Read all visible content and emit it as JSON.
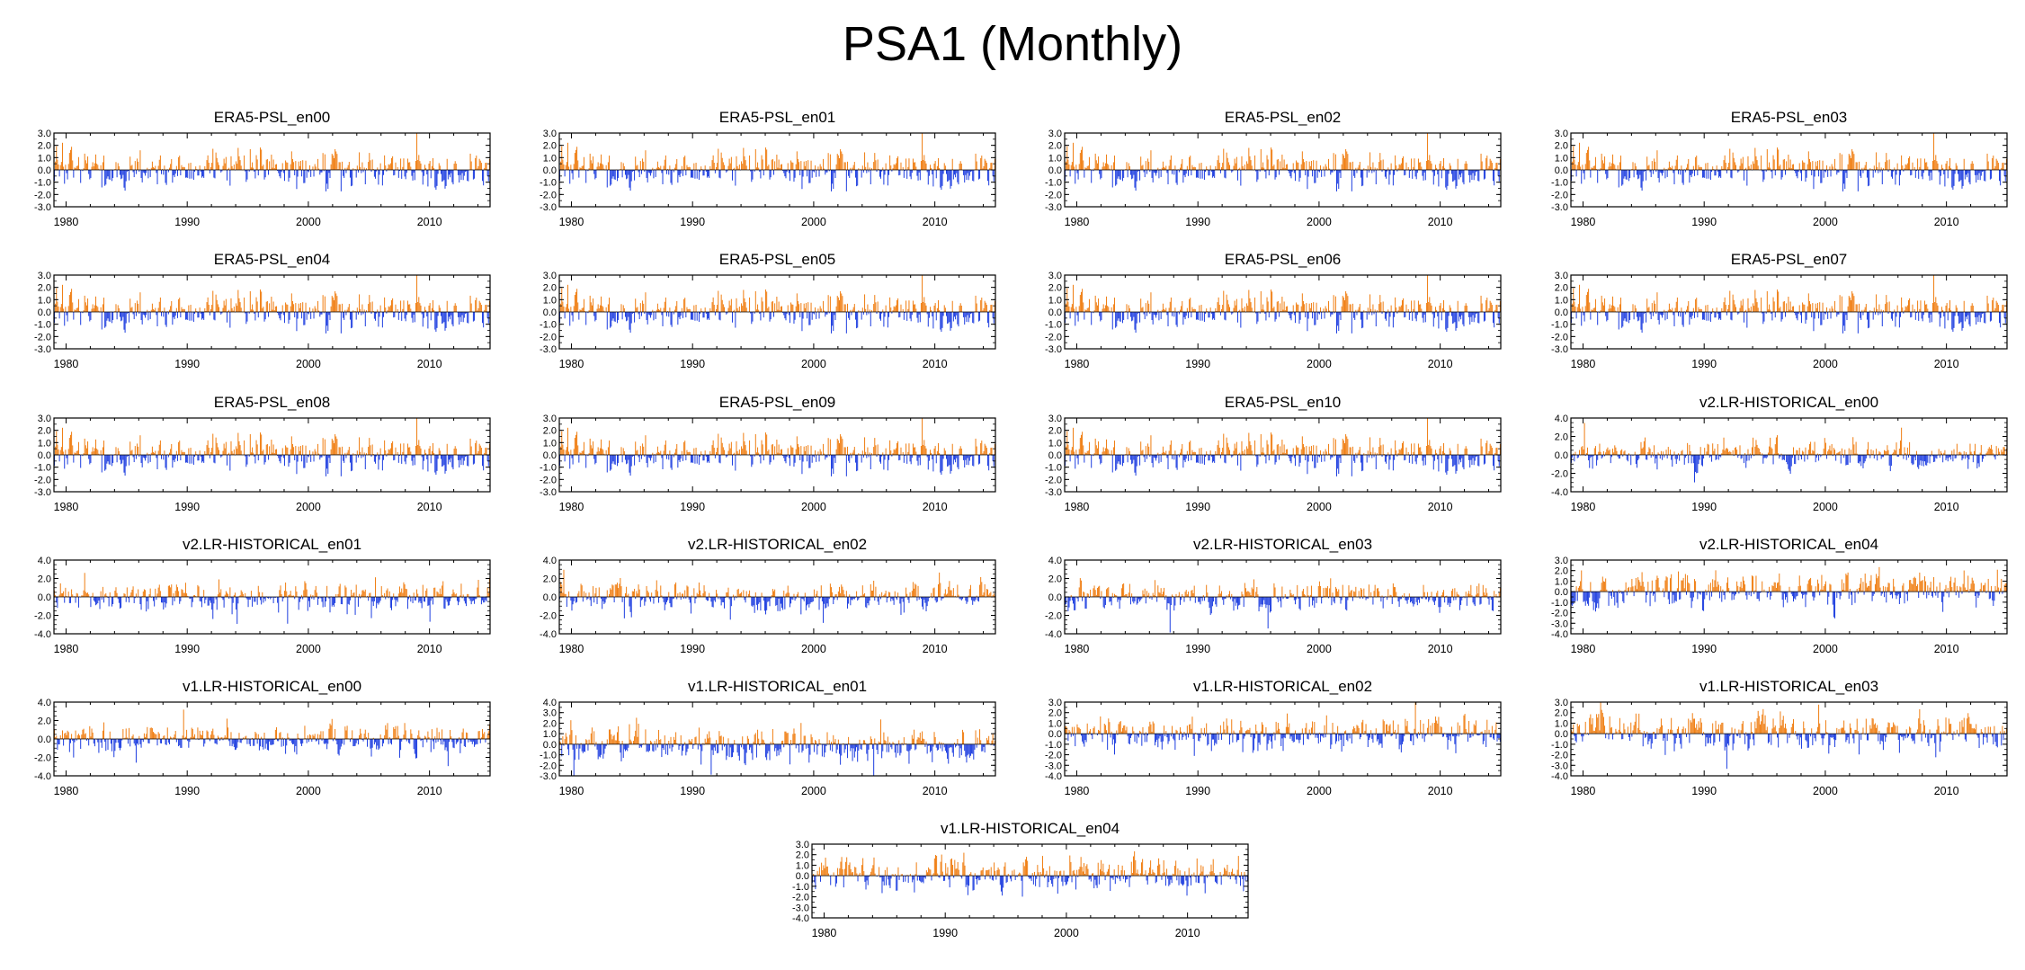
{
  "figure": {
    "title": "PSA1 (Monthly)"
  },
  "colors": {
    "positive": "#f07f14",
    "negative": "#1f3fe0",
    "axis": "#000000",
    "background": "#ffffff"
  },
  "chart_data": [
    {
      "type": "bar",
      "title": "ERA5-PSL_en00",
      "x_range": [
        1979,
        2015
      ],
      "ylim": [
        -3,
        3
      ],
      "yticks": [
        "3.0",
        "2.0",
        "1.0",
        "0.0",
        "-1.0",
        "-2.0",
        "-3.0"
      ],
      "xticks": [
        "1980",
        "1990",
        "2000",
        "2010"
      ],
      "seed": 11,
      "amp": 0.9
    },
    {
      "type": "bar",
      "title": "ERA5-PSL_en01",
      "x_range": [
        1979,
        2015
      ],
      "ylim": [
        -3,
        3
      ],
      "yticks": [
        "3.0",
        "2.0",
        "1.0",
        "0.0",
        "-1.0",
        "-2.0",
        "-3.0"
      ],
      "xticks": [
        "1980",
        "1990",
        "2000",
        "2010"
      ],
      "seed": 11,
      "amp": 0.9
    },
    {
      "type": "bar",
      "title": "ERA5-PSL_en02",
      "x_range": [
        1979,
        2015
      ],
      "ylim": [
        -3,
        3
      ],
      "yticks": [
        "3.0",
        "2.0",
        "1.0",
        "0.0",
        "-1.0",
        "-2.0",
        "-3.0"
      ],
      "xticks": [
        "1980",
        "1990",
        "2000",
        "2010"
      ],
      "seed": 11,
      "amp": 0.9
    },
    {
      "type": "bar",
      "title": "ERA5-PSL_en03",
      "x_range": [
        1979,
        2015
      ],
      "ylim": [
        -3,
        3
      ],
      "yticks": [
        "3.0",
        "2.0",
        "1.0",
        "0.0",
        "-1.0",
        "-2.0",
        "-3.0"
      ],
      "xticks": [
        "1980",
        "1990",
        "2000",
        "2010"
      ],
      "seed": 11,
      "amp": 0.9
    },
    {
      "type": "bar",
      "title": "ERA5-PSL_en04",
      "x_range": [
        1979,
        2015
      ],
      "ylim": [
        -3,
        3
      ],
      "yticks": [
        "3.0",
        "2.0",
        "1.0",
        "0.0",
        "-1.0",
        "-2.0",
        "-3.0"
      ],
      "xticks": [
        "1980",
        "1990",
        "2000",
        "2010"
      ],
      "seed": 11,
      "amp": 0.9
    },
    {
      "type": "bar",
      "title": "ERA5-PSL_en05",
      "x_range": [
        1979,
        2015
      ],
      "ylim": [
        -3,
        3
      ],
      "yticks": [
        "3.0",
        "2.0",
        "1.0",
        "0.0",
        "-1.0",
        "-2.0",
        "-3.0"
      ],
      "xticks": [
        "1980",
        "1990",
        "2000",
        "2010"
      ],
      "seed": 11,
      "amp": 0.9
    },
    {
      "type": "bar",
      "title": "ERA5-PSL_en06",
      "x_range": [
        1979,
        2015
      ],
      "ylim": [
        -3,
        3
      ],
      "yticks": [
        "3.0",
        "2.0",
        "1.0",
        "0.0",
        "-1.0",
        "-2.0",
        "-3.0"
      ],
      "xticks": [
        "1980",
        "1990",
        "2000",
        "2010"
      ],
      "seed": 11,
      "amp": 0.9
    },
    {
      "type": "bar",
      "title": "ERA5-PSL_en07",
      "x_range": [
        1979,
        2015
      ],
      "ylim": [
        -3,
        3
      ],
      "yticks": [
        "3.0",
        "2.0",
        "1.0",
        "0.0",
        "-1.0",
        "-2.0",
        "-3.0"
      ],
      "xticks": [
        "1980",
        "1990",
        "2000",
        "2010"
      ],
      "seed": 11,
      "amp": 0.9
    },
    {
      "type": "bar",
      "title": "ERA5-PSL_en08",
      "x_range": [
        1979,
        2015
      ],
      "ylim": [
        -3,
        3
      ],
      "yticks": [
        "3.0",
        "2.0",
        "1.0",
        "0.0",
        "-1.0",
        "-2.0",
        "-3.0"
      ],
      "xticks": [
        "1980",
        "1990",
        "2000",
        "2010"
      ],
      "seed": 11,
      "amp": 0.9
    },
    {
      "type": "bar",
      "title": "ERA5-PSL_en09",
      "x_range": [
        1979,
        2015
      ],
      "ylim": [
        -3,
        3
      ],
      "yticks": [
        "3.0",
        "2.0",
        "1.0",
        "0.0",
        "-1.0",
        "-2.0",
        "-3.0"
      ],
      "xticks": [
        "1980",
        "1990",
        "2000",
        "2010"
      ],
      "seed": 11,
      "amp": 0.9
    },
    {
      "type": "bar",
      "title": "ERA5-PSL_en10",
      "x_range": [
        1979,
        2015
      ],
      "ylim": [
        -3,
        3
      ],
      "yticks": [
        "3.0",
        "2.0",
        "1.0",
        "0.0",
        "-1.0",
        "-2.0",
        "-3.0"
      ],
      "xticks": [
        "1980",
        "1990",
        "2000",
        "2010"
      ],
      "seed": 11,
      "amp": 0.9
    },
    {
      "type": "bar",
      "title": "v2.LR-HISTORICAL_en00",
      "x_range": [
        1979,
        2015
      ],
      "ylim": [
        -4,
        4
      ],
      "yticks": [
        "4.0",
        "2.0",
        "0.0",
        "-2.0",
        "-4.0"
      ],
      "xticks": [
        "1980",
        "1990",
        "2000",
        "2010"
      ],
      "seed": 23,
      "amp": 0.85
    },
    {
      "type": "bar",
      "title": "v2.LR-HISTORICAL_en01",
      "x_range": [
        1979,
        2015
      ],
      "ylim": [
        -4,
        4
      ],
      "yticks": [
        "4.0",
        "2.0",
        "0.0",
        "-2.0",
        "-4.0"
      ],
      "xticks": [
        "1980",
        "1990",
        "2000",
        "2010"
      ],
      "seed": 31,
      "amp": 0.9
    },
    {
      "type": "bar",
      "title": "v2.LR-HISTORICAL_en02",
      "x_range": [
        1979,
        2015
      ],
      "ylim": [
        -4,
        4
      ],
      "yticks": [
        "4.0",
        "2.0",
        "0.0",
        "-2.0",
        "-4.0"
      ],
      "xticks": [
        "1980",
        "1990",
        "2000",
        "2010"
      ],
      "seed": 37,
      "amp": 0.9
    },
    {
      "type": "bar",
      "title": "v2.LR-HISTORICAL_en03",
      "x_range": [
        1979,
        2015
      ],
      "ylim": [
        -4,
        4
      ],
      "yticks": [
        "4.0",
        "2.0",
        "0.0",
        "-2.0",
        "-4.0"
      ],
      "xticks": [
        "1980",
        "1990",
        "2000",
        "2010"
      ],
      "seed": 41,
      "amp": 0.9
    },
    {
      "type": "bar",
      "title": "v2.LR-HISTORICAL_en04",
      "x_range": [
        1979,
        2015
      ],
      "ylim": [
        -4,
        3
      ],
      "yticks": [
        "3.0",
        "2.0",
        "1.0",
        "0.0",
        "-1.0",
        "-2.0",
        "-3.0",
        "-4.0"
      ],
      "xticks": [
        "1980",
        "1990",
        "2000",
        "2010"
      ],
      "seed": 43,
      "amp": 0.95
    },
    {
      "type": "bar",
      "title": "v1.LR-HISTORICAL_en00",
      "x_range": [
        1979,
        2015
      ],
      "ylim": [
        -4,
        4
      ],
      "yticks": [
        "4.0",
        "2.0",
        "0.0",
        "-2.0",
        "-4.0"
      ],
      "xticks": [
        "1980",
        "1990",
        "2000",
        "2010"
      ],
      "seed": 47,
      "amp": 0.9
    },
    {
      "type": "bar",
      "title": "v1.LR-HISTORICAL_en01",
      "x_range": [
        1979,
        2015
      ],
      "ylim": [
        -3,
        4
      ],
      "yticks": [
        "4.0",
        "3.0",
        "2.0",
        "1.0",
        "0.0",
        "-1.0",
        "-2.0",
        "-3.0"
      ],
      "xticks": [
        "1980",
        "1990",
        "2000",
        "2010"
      ],
      "seed": 53,
      "amp": 0.95
    },
    {
      "type": "bar",
      "title": "v1.LR-HISTORICAL_en02",
      "x_range": [
        1979,
        2015
      ],
      "ylim": [
        -4,
        3
      ],
      "yticks": [
        "3.0",
        "2.0",
        "1.0",
        "0.0",
        "-1.0",
        "-2.0",
        "-3.0",
        "-4.0"
      ],
      "xticks": [
        "1980",
        "1990",
        "2000",
        "2010"
      ],
      "seed": 59,
      "amp": 0.95
    },
    {
      "type": "bar",
      "title": "v1.LR-HISTORICAL_en03",
      "x_range": [
        1979,
        2015
      ],
      "ylim": [
        -4,
        3
      ],
      "yticks": [
        "3.0",
        "2.0",
        "1.0",
        "0.0",
        "-1.0",
        "-2.0",
        "-3.0",
        "-4.0"
      ],
      "xticks": [
        "1980",
        "1990",
        "2000",
        "2010"
      ],
      "seed": 61,
      "amp": 0.95
    },
    {
      "type": "bar",
      "title": "v1.LR-HISTORICAL_en04",
      "x_range": [
        1979,
        2015
      ],
      "ylim": [
        -4,
        3
      ],
      "yticks": [
        "3.0",
        "2.0",
        "1.0",
        "0.0",
        "-1.0",
        "-2.0",
        "-3.0",
        "-4.0"
      ],
      "xticks": [
        "1980",
        "1990",
        "2000",
        "2010"
      ],
      "seed": 67,
      "amp": 0.95
    }
  ]
}
